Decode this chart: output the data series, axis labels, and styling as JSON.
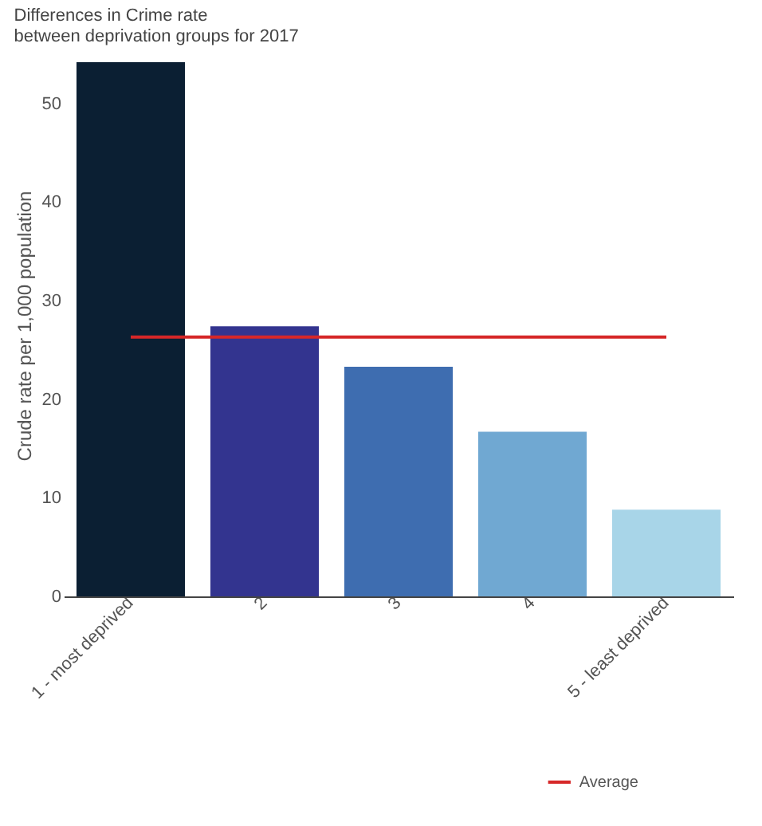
{
  "chart_data": {
    "type": "bar",
    "title": "Differences in Crime rate\nbetween deprivation groups for 2017",
    "ylabel": "Crude rate per 1,000 population",
    "categories": [
      "1 - most deprived",
      "2",
      "3",
      "4",
      "5 - least deprived"
    ],
    "series": [
      {
        "values": [
          54.2,
          27.4,
          23.3,
          16.7,
          8.8
        ],
        "colors": [
          "#0b1f33",
          "#33348f",
          "#3e6db0",
          "#70a8d2",
          "#a8d5e8"
        ]
      },
      {
        "name": "Average",
        "type": "line",
        "color": "#d62728",
        "values": [
          26.3,
          26.3,
          26.3,
          26.3,
          26.3
        ]
      }
    ],
    "ylim": [
      0,
      55
    ],
    "yticks": [
      0,
      10,
      20,
      30,
      40,
      50
    ],
    "grid": false,
    "legend": "bottom right"
  }
}
